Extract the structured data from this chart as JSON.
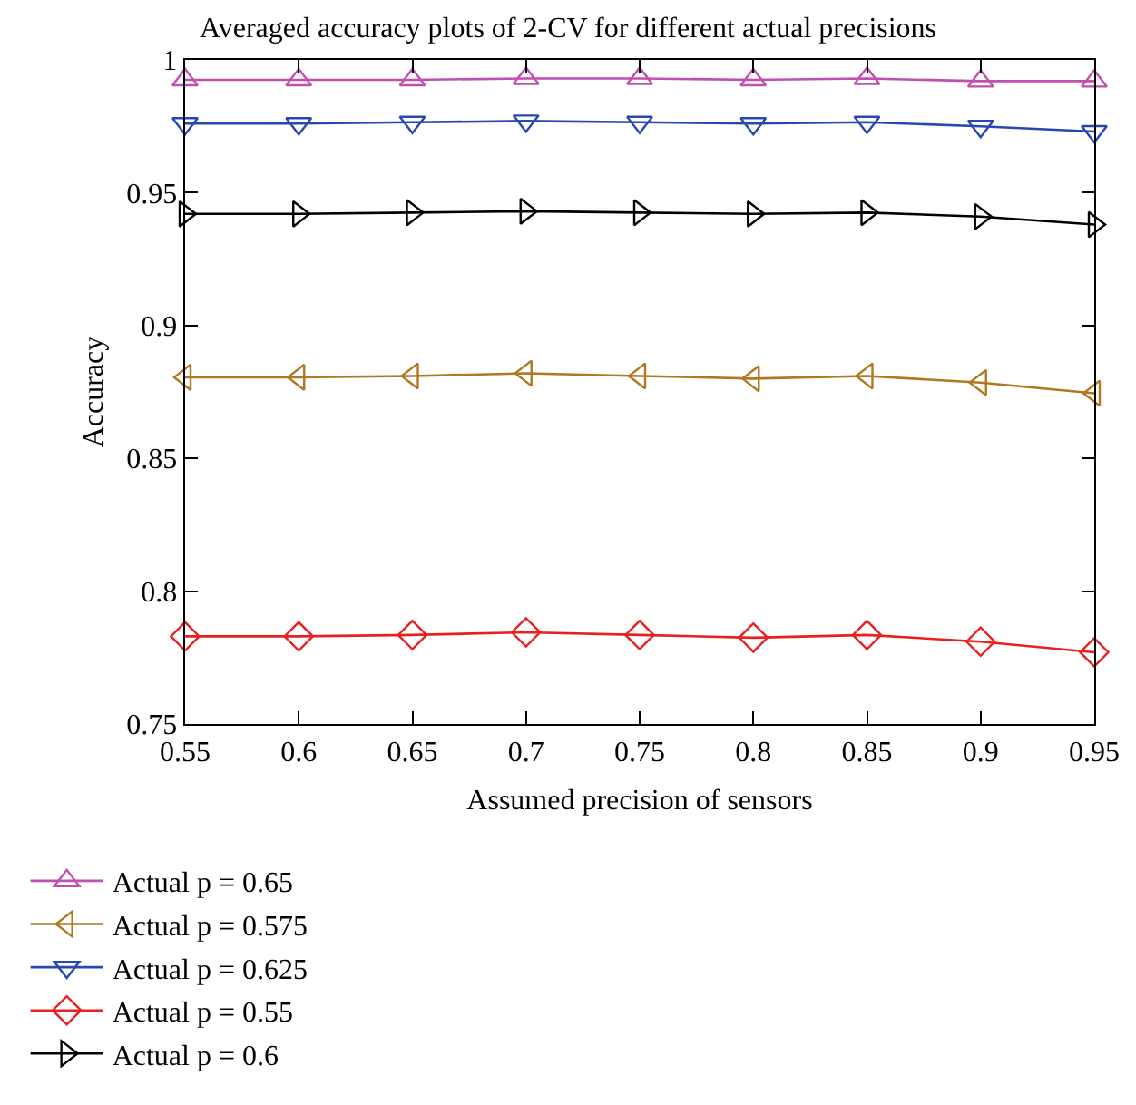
{
  "chart_data": {
    "type": "line",
    "title": "Averaged accuracy plots of 2-CV for different actual precisions",
    "xlabel": "Assumed precision of sensors",
    "ylabel": "Accuracy",
    "x": [
      0.55,
      0.6,
      0.65,
      0.7,
      0.75,
      0.8,
      0.85,
      0.9,
      0.95
    ],
    "xlim": [
      0.55,
      0.95
    ],
    "xticks": [
      0.55,
      0.6,
      0.65,
      0.7,
      0.75,
      0.8,
      0.85,
      0.9,
      0.95
    ],
    "ylim": [
      0.75,
      1
    ],
    "yticks": [
      0.75,
      0.8,
      0.85,
      0.9,
      0.95,
      1
    ],
    "grid": false,
    "legend": "bottom",
    "line_style": "solid",
    "series": [
      {
        "name": "Actual p = 0.65",
        "color": "#c050b0",
        "marker": "triangle",
        "values": [
          0.9925,
          0.9925,
          0.9925,
          0.993,
          0.993,
          0.9925,
          0.993,
          0.992,
          0.992
        ]
      },
      {
        "name": "Actual p = 0.625",
        "color": "#2848b0",
        "marker": "triangle-down",
        "values": [
          0.976,
          0.976,
          0.9765,
          0.977,
          0.9765,
          0.976,
          0.9765,
          0.975,
          0.973
        ]
      },
      {
        "name": "Actual p = 0.6",
        "color": "#000000",
        "marker": "triangle-right",
        "values": [
          0.942,
          0.942,
          0.9425,
          0.943,
          0.9425,
          0.942,
          0.9425,
          0.941,
          0.938
        ]
      },
      {
        "name": "Actual p = 0.575",
        "color": "#b07820",
        "marker": "triangle-left",
        "values": [
          0.8805,
          0.8805,
          0.881,
          0.882,
          0.881,
          0.88,
          0.881,
          0.8785,
          0.8745
        ]
      },
      {
        "name": "Actual p = 0.55",
        "color": "#e82020",
        "marker": "diamond",
        "values": [
          0.783,
          0.783,
          0.7835,
          0.7845,
          0.7835,
          0.7825,
          0.7835,
          0.781,
          0.777
        ]
      }
    ]
  }
}
